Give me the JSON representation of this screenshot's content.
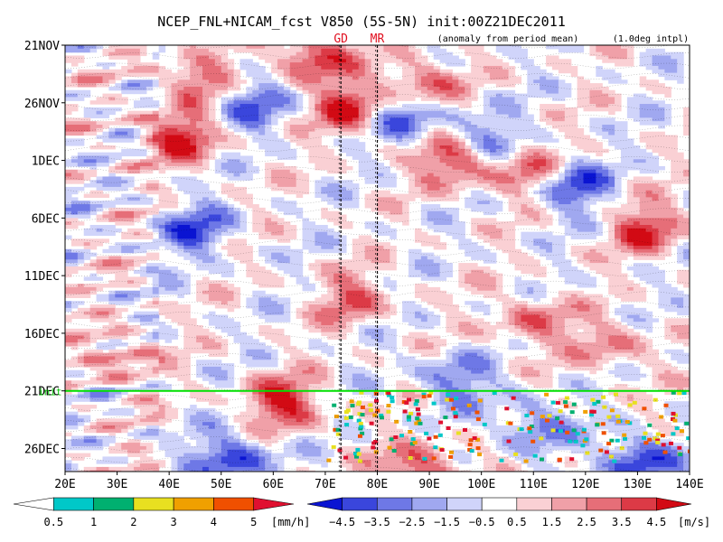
{
  "chart_data": {
    "type": "heatmap",
    "title": "NCEP_FNL+NICAM_fcst V850 (5S-5N) init:00Z21DEC2011",
    "subtitle_left": "(anomaly from period mean)",
    "subtitle_right": "(1.0deg intpl)",
    "markers": [
      {
        "label": "GD",
        "lon": 73
      },
      {
        "label": "MR",
        "lon": 80
      }
    ],
    "forecast_start_label": "init",
    "x_ticks": [
      "20E",
      "30E",
      "40E",
      "50E",
      "60E",
      "70E",
      "80E",
      "90E",
      "100E",
      "110E",
      "120E",
      "130E",
      "140E"
    ],
    "xlim": [
      20,
      140
    ],
    "y_ticks": [
      "21NOV",
      "26NOV",
      "1DEC",
      "6DEC",
      "11DEC",
      "16DEC",
      "21DEC",
      "26DEC"
    ],
    "ylim_days": [
      0,
      37
    ],
    "precip_colorbar": {
      "levels": [
        "0.5",
        "1",
        "2",
        "3",
        "4",
        "5"
      ],
      "unit": "[mm/h]",
      "colors": [
        "#ffffff",
        "#00c8c8",
        "#00b070",
        "#e8e020",
        "#f0a000",
        "#f05000",
        "#e01030"
      ]
    },
    "wind_colorbar": {
      "levels": [
        "−4.5",
        "−3.5",
        "−2.5",
        "−1.5",
        "−0.5",
        "0.5",
        "1.5",
        "2.5",
        "3.5",
        "4.5"
      ],
      "unit": "[m/s]",
      "colors": [
        "#0a14d2",
        "#3a46dc",
        "#6e78e6",
        "#a0a8f0",
        "#d0d4fa",
        "#ffffff",
        "#fad0d4",
        "#f0a0a8",
        "#e66e78",
        "#dc3a46",
        "#d20a14"
      ]
    },
    "anomaly_blobs": [
      {
        "lon": 42,
        "day": 8,
        "value": 4.5
      },
      {
        "lon": 46,
        "day": 3,
        "value": 3.5
      },
      {
        "lon": 68,
        "day": 1,
        "value": 4.5
      },
      {
        "lon": 75,
        "day": 5.5,
        "value": 4.5
      },
      {
        "lon": 88,
        "day": 3.5,
        "value": 4.0
      },
      {
        "lon": 95,
        "day": 10,
        "value": 4.5
      },
      {
        "lon": 110,
        "day": 11,
        "value": 3.5
      },
      {
        "lon": 117,
        "day": 12,
        "value": -4.5
      },
      {
        "lon": 132,
        "day": 16,
        "value": 4.0
      },
      {
        "lon": 55,
        "day": 5,
        "value": -3.5
      },
      {
        "lon": 85,
        "day": 6,
        "value": -4.0
      },
      {
        "lon": 100,
        "day": 8,
        "value": -3.0
      },
      {
        "lon": 45,
        "day": 16,
        "value": -3.5
      },
      {
        "lon": 62,
        "day": 31,
        "value": 4.5
      },
      {
        "lon": 52,
        "day": 36,
        "value": -4.5
      },
      {
        "lon": 88,
        "day": 37,
        "value": 4.5
      },
      {
        "lon": 130,
        "day": 36,
        "value": -4.5
      },
      {
        "lon": 110,
        "day": 33,
        "value": -3.0
      },
      {
        "lon": 75,
        "day": 22,
        "value": 3.0
      },
      {
        "lon": 110,
        "day": 24,
        "value": 3.0
      },
      {
        "lon": 125,
        "day": 26,
        "value": 2.5
      },
      {
        "lon": 30,
        "day": 27,
        "value": 2.5
      },
      {
        "lon": 95,
        "day": 29,
        "value": -3.0
      }
    ]
  }
}
